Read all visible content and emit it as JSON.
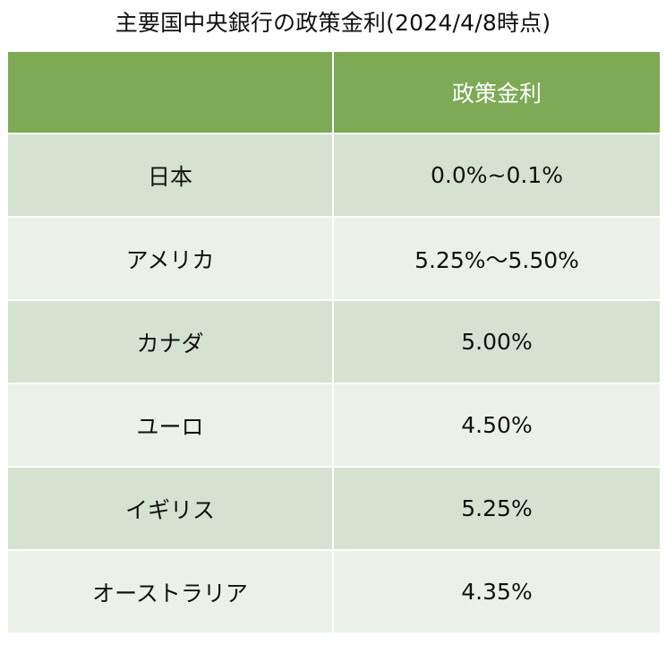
{
  "title": "主要国中央銀行の政策金利(2024/4/8時点)",
  "table": {
    "headers": [
      "",
      "政策金利"
    ],
    "rows": [
      {
        "country": "日本",
        "rate": "0.0%~0.1%"
      },
      {
        "country": "アメリカ",
        "rate": "5.25%〜5.50%"
      },
      {
        "country": "カナダ",
        "rate": "5.00%"
      },
      {
        "country": "ユーロ",
        "rate": "4.50%"
      },
      {
        "country": "イギリス",
        "rate": "5.25%"
      },
      {
        "country": "オーストラリア",
        "rate": "4.35%"
      }
    ]
  },
  "colors": {
    "header_bg": "#7ea955",
    "row_dark": "#d6e2d0",
    "row_light": "#ebf1e9"
  }
}
